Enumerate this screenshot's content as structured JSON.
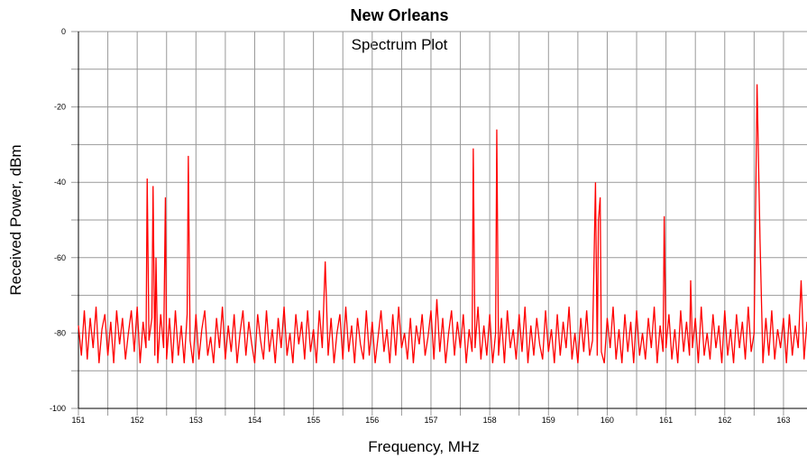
{
  "chart_data": {
    "type": "line",
    "title": "New Orleans",
    "subtitle": "Spectrum Plot",
    "x_label": "Frequency, MHz",
    "y_label": "Received Power, dBm",
    "color": "#ff0000",
    "grid": true,
    "xlim": [
      151,
      163.4
    ],
    "ylim": [
      -100,
      0
    ],
    "xticks": [
      151,
      152,
      153,
      154,
      155,
      156,
      157,
      158,
      159,
      160,
      161,
      162,
      163
    ],
    "xminor": [
      151.5,
      152.5,
      153.5,
      154.5,
      155.5,
      156.5,
      157.5,
      158.5,
      159.5,
      160.5,
      161.5,
      162.5
    ],
    "yticks": [
      0,
      -20,
      -40,
      -60,
      -80,
      -100
    ],
    "yminor": [
      -10,
      -30,
      -50,
      -70,
      -90
    ],
    "x": [
      151.0,
      151.05,
      151.1,
      151.15,
      151.2,
      151.25,
      151.3,
      151.35,
      151.4,
      151.45,
      151.5,
      151.55,
      151.6,
      151.65,
      151.7,
      151.75,
      151.8,
      151.85,
      151.9,
      151.95,
      152.0,
      152.05,
      152.1,
      152.15,
      152.17,
      152.2,
      152.25,
      152.27,
      152.3,
      152.32,
      152.35,
      152.4,
      152.45,
      152.48,
      152.5,
      152.55,
      152.6,
      152.65,
      152.7,
      152.75,
      152.8,
      152.85,
      152.87,
      152.9,
      152.95,
      153.0,
      153.05,
      153.1,
      153.15,
      153.2,
      153.25,
      153.3,
      153.35,
      153.4,
      153.45,
      153.5,
      153.55,
      153.6,
      153.65,
      153.7,
      153.75,
      153.8,
      153.85,
      153.9,
      153.95,
      154.0,
      154.05,
      154.1,
      154.15,
      154.2,
      154.25,
      154.3,
      154.35,
      154.4,
      154.45,
      154.5,
      154.55,
      154.6,
      154.65,
      154.7,
      154.75,
      154.8,
      154.85,
      154.9,
      154.95,
      155.0,
      155.05,
      155.1,
      155.15,
      155.2,
      155.25,
      155.3,
      155.35,
      155.4,
      155.45,
      155.5,
      155.55,
      155.6,
      155.65,
      155.7,
      155.75,
      155.8,
      155.85,
      155.9,
      155.95,
      156.0,
      156.05,
      156.1,
      156.15,
      156.2,
      156.25,
      156.3,
      156.35,
      156.4,
      156.45,
      156.5,
      156.55,
      156.6,
      156.65,
      156.7,
      156.75,
      156.8,
      156.85,
      156.9,
      156.95,
      157.0,
      157.05,
      157.1,
      157.15,
      157.2,
      157.25,
      157.3,
      157.35,
      157.4,
      157.45,
      157.5,
      157.55,
      157.6,
      157.65,
      157.7,
      157.72,
      157.75,
      157.8,
      157.85,
      157.9,
      157.95,
      158.0,
      158.05,
      158.1,
      158.12,
      158.15,
      158.2,
      158.25,
      158.3,
      158.35,
      158.4,
      158.45,
      158.5,
      158.55,
      158.6,
      158.65,
      158.7,
      158.75,
      158.8,
      158.85,
      158.9,
      158.95,
      159.0,
      159.05,
      159.1,
      159.15,
      159.2,
      159.25,
      159.3,
      159.35,
      159.4,
      159.45,
      159.5,
      159.55,
      159.6,
      159.65,
      159.7,
      159.75,
      159.8,
      159.83,
      159.85,
      159.88,
      159.9,
      159.95,
      160.0,
      160.05,
      160.1,
      160.15,
      160.2,
      160.25,
      160.3,
      160.35,
      160.4,
      160.45,
      160.5,
      160.55,
      160.6,
      160.65,
      160.7,
      160.75,
      160.8,
      160.85,
      160.9,
      160.95,
      160.97,
      161.0,
      161.05,
      161.1,
      161.15,
      161.2,
      161.25,
      161.3,
      161.35,
      161.4,
      161.42,
      161.45,
      161.5,
      161.55,
      161.6,
      161.65,
      161.7,
      161.75,
      161.8,
      161.85,
      161.9,
      161.95,
      162.0,
      162.05,
      162.1,
      162.15,
      162.2,
      162.25,
      162.3,
      162.35,
      162.4,
      162.45,
      162.5,
      162.55,
      162.6,
      162.65,
      162.7,
      162.75,
      162.8,
      162.85,
      162.9,
      162.95,
      163.0,
      163.05,
      163.1,
      163.15,
      163.2,
      163.25,
      163.3,
      163.35,
      163.4
    ],
    "values": [
      -78,
      -86,
      -74,
      -87,
      -76,
      -84,
      -73,
      -88,
      -79,
      -75,
      -86,
      -77,
      -88,
      -74,
      -83,
      -76,
      -87,
      -80,
      -74,
      -85,
      -73,
      -88,
      -77,
      -84,
      -39,
      -82,
      -76,
      -41,
      -86,
      -60,
      -88,
      -75,
      -84,
      -44,
      -87,
      -76,
      -88,
      -74,
      -86,
      -78,
      -88,
      -75,
      -33,
      -82,
      -88,
      -75,
      -87,
      -79,
      -74,
      -86,
      -81,
      -88,
      -76,
      -84,
      -73,
      -87,
      -78,
      -85,
      -75,
      -88,
      -80,
      -74,
      -86,
      -77,
      -83,
      -88,
      -75,
      -82,
      -87,
      -74,
      -85,
      -79,
      -88,
      -76,
      -84,
      -73,
      -86,
      -80,
      -88,
      -75,
      -83,
      -77,
      -87,
      -74,
      -85,
      -79,
      -88,
      -74,
      -84,
      -61,
      -86,
      -76,
      -88,
      -80,
      -75,
      -87,
      -73,
      -85,
      -78,
      -88,
      -76,
      -83,
      -87,
      -74,
      -86,
      -77,
      -88,
      -81,
      -74,
      -85,
      -79,
      -88,
      -75,
      -86,
      -73,
      -84,
      -80,
      -87,
      -76,
      -88,
      -78,
      -83,
      -75,
      -86,
      -81,
      -74,
      -87,
      -71,
      -85,
      -76,
      -88,
      -80,
      -74,
      -86,
      -77,
      -84,
      -75,
      -88,
      -79,
      -85,
      -31,
      -84,
      -73,
      -87,
      -78,
      -86,
      -75,
      -88,
      -80,
      -26,
      -86,
      -76,
      -88,
      -74,
      -84,
      -79,
      -87,
      -75,
      -85,
      -73,
      -88,
      -78,
      -86,
      -76,
      -83,
      -87,
      -74,
      -85,
      -79,
      -88,
      -75,
      -86,
      -77,
      -84,
      -73,
      -87,
      -80,
      -88,
      -76,
      -85,
      -74,
      -86,
      -82,
      -40,
      -86,
      -50,
      -44,
      -85,
      -88,
      -76,
      -84,
      -73,
      -87,
      -79,
      -88,
      -75,
      -85,
      -77,
      -88,
      -74,
      -86,
      -80,
      -87,
      -76,
      -84,
      -73,
      -88,
      -78,
      -85,
      -49,
      -84,
      -75,
      -87,
      -79,
      -88,
      -74,
      -85,
      -77,
      -86,
      -66,
      -84,
      -76,
      -88,
      -73,
      -86,
      -80,
      -87,
      -75,
      -84,
      -78,
      -88,
      -74,
      -86,
      -79,
      -88,
      -75,
      -84,
      -77,
      -87,
      -73,
      -85,
      -80,
      -14,
      -55,
      -88,
      -76,
      -86,
      -74,
      -87,
      -79,
      -84,
      -76,
      -88,
      -75,
      -86,
      -78,
      -84,
      -66,
      -87,
      -77
    ]
  }
}
